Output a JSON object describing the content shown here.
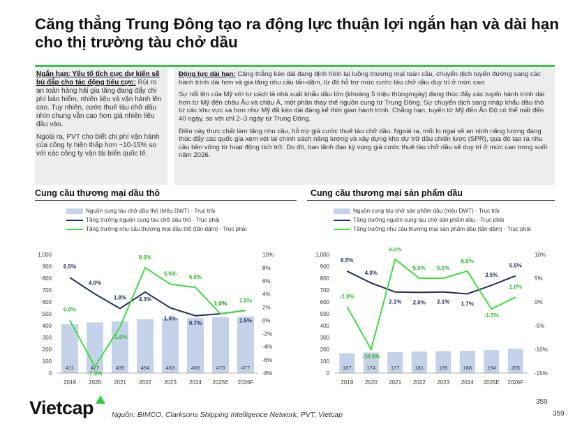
{
  "title": "Căng thẳng Trung Đông tạo ra động lực thuận lợi ngắn hạn và dài hạn cho thị trường tàu chở dầu",
  "left_box": {
    "p1_heading": "Ngắn hạn: Yếu tố tích cực dự kiến sẽ bù đắp cho tác động tiêu cực:",
    "p1_body": "Rủi ro an toàn hàng hải gia tăng đang đẩy chi phí bảo hiểm, nhiên liệu và vận hành lên cao. Tuy nhiên, cước thuê tàu chở dầu nhìn chung vẫn cao hơn giá nhiên liệu đầu vào.",
    "p2": "Ngoài ra, PVT cho biết chi phí vận hành của công ty hiện thấp hơn ~10-15% so với các công ty vận tải biển quốc tế."
  },
  "right_box": {
    "p1_heading": "Động lực dài hạn:",
    "p1_body": "Căng thẳng kéo dài đang định hình lại luồng thương mại toàn cầu, chuyển dịch tuyến đường sang các hành trình dài hơn và gia tăng nhu cầu tấn-dặm, từ đó hỗ trợ mức cước tàu chở dầu duy trì ở mức cao.",
    "p2": "Sự nổi lên của Mỹ với tư cách là nhà xuất khẩu dầu lớn (khoảng 5 triệu thùng/ngày) đang thúc đẩy các tuyến hành trình dài hơn từ Mỹ đến châu Âu và châu Á, một phần thay thế nguồn cung từ Trung Đông. Sự chuyển dịch sang nhập khẩu dầu thô từ các khu vực xa hơn như Mỹ đã kéo dài đáng kể thời gian hành trình. Chẳng hạn, tuyến từ Mỹ đến Ấn Độ có thể mất đến 40 ngày, so với chỉ 2–3 ngày từ Trung Đông.",
    "p3": "Điều này thực chất làm tăng nhu cầu, hỗ trợ giá cước thuê tàu chở dầu. Ngoài ra, mối lo ngại về an ninh năng lượng đang thúc đẩy các quốc gia xem xét lại chính sách năng lượng và xây dựng kho dự trữ dầu chiến lược (SPR), qua đó tạo ra nhu cầu bền vững từ hoạt động tích trữ. Do đó, ban lãnh đạo kỳ vọng giá cước thuê tàu chở dầu sẽ duy trì ở mức cao trong suốt năm 2026."
  },
  "colors": {
    "accent": "#2ecc40",
    "bar": "#c5d3ea",
    "navy": "#1f2f5c",
    "green": "#3ddc3d"
  },
  "chart_data": [
    {
      "type": "bar",
      "title": "Cung cầu thương mại dầu thô",
      "categories": [
        "2019",
        "2020",
        "2021",
        "2022",
        "2023",
        "2024",
        "2025E",
        "2026F"
      ],
      "left_ticks": [
        "1,000",
        "900",
        "800",
        "700",
        "600",
        "500",
        "400",
        "300",
        "200",
        "100",
        "0"
      ],
      "right_ticks": [
        "10%",
        "8%",
        "6%",
        "4%",
        "2%",
        "0%",
        "-2%",
        "-4%",
        "-6%",
        "-8%"
      ],
      "ylim_left": [
        0,
        1000
      ],
      "ylim_right": [
        -8,
        10
      ],
      "series": [
        {
          "name": "Nguồn cung tàu chở dầu thô (triệu DWT) - Trục trái",
          "axis": "left",
          "kind": "bar",
          "values": [
            411,
            427,
            435,
            454,
            463,
            466,
            470,
            477
          ],
          "labels": [
            "411",
            "427",
            "435",
            "454",
            "463",
            "466",
            "470",
            "477"
          ]
        },
        {
          "name": "Tăng trưởng nguồn cung tàu chở dầu thô - Trục phải",
          "axis": "right",
          "kind": "line",
          "color": "#1f2f5c",
          "values": [
            6.5,
            4.0,
            1.8,
            4.3,
            1.9,
            0.7,
            1.0,
            1.5
          ],
          "labels": [
            "6.5%",
            "4.0%",
            "1.8%",
            "4.3%",
            "1.9%",
            "0.7%",
            "1.0%",
            "1.5%"
          ]
        },
        {
          "name": "Tăng trưởng nhu cầu thương mại dầu thô (tấn-dặm) - Trục phải",
          "axis": "right",
          "kind": "line",
          "color": "#3ddc3d",
          "values": [
            0.0,
            -7.0,
            -1.0,
            8.0,
            5.5,
            5.0,
            1.0,
            1.5
          ],
          "labels": [
            "0.0%",
            "-7.0%",
            "-1.0%",
            "8.0%",
            "5.5%",
            "5.0%",
            "1.0%",
            "1.5%"
          ]
        }
      ]
    },
    {
      "type": "bar",
      "title": "Cung cầu thương mại sản phẩm dầu",
      "categories": [
        "2019",
        "2020",
        "2021",
        "2022",
        "2023",
        "2024",
        "2025E",
        "2026F"
      ],
      "left_ticks": [
        "1,000",
        "900",
        "800",
        "700",
        "600",
        "500",
        "400",
        "300",
        "200",
        "100",
        "0"
      ],
      "right_ticks": [
        "10%",
        "5%",
        "0%",
        "-5%",
        "-10%",
        "-15%"
      ],
      "ylim_left": [
        0,
        1000
      ],
      "ylim_right": [
        -15,
        10
      ],
      "series": [
        {
          "name": "Nguồn cung tàu chở sản phẩm dầu (triệu DWT) - Trục trái",
          "axis": "left",
          "kind": "bar",
          "values": [
            167,
            174,
            177,
            181,
            185,
            188,
            194,
            205
          ],
          "labels": [
            "167",
            "174",
            "177",
            "181",
            "185",
            "188",
            "194",
            "205"
          ]
        },
        {
          "name": "Tăng trưởng nguồn cung tàu chở sản phẩm dầu - Trục phải",
          "axis": "right",
          "kind": "line",
          "color": "#1f2f5c",
          "values": [
            6.5,
            4.0,
            2.1,
            2.0,
            2.1,
            1.7,
            3.5,
            5.5
          ],
          "labels": [
            "6.5%",
            "4.0%",
            "2.1%",
            "2.0%",
            "2.1%",
            "1.7%",
            "3.5%",
            "5.5%"
          ]
        },
        {
          "name": "Tăng trưởng nhu cầu thương mại sản phẩm dầu (tấn-dặm) - Trục phải",
          "axis": "right",
          "kind": "line",
          "color": "#3ddc3d",
          "values": [
            -1.0,
            -10.0,
            9.0,
            5.0,
            5.0,
            6.5,
            -1.5,
            1.0
          ],
          "labels": [
            "-1.0%",
            "-10.0%",
            "9.0%",
            "5.0%",
            "5.0%",
            "6.5%",
            "-1.5%",
            "1.0%"
          ]
        }
      ]
    }
  ],
  "footer": {
    "logo": "Vietcap",
    "source": "Nguồn: BIMCO, Clarksons Shipping Intelligence Network, PVT, Vietcap",
    "page1": "359",
    "page2": "359"
  }
}
